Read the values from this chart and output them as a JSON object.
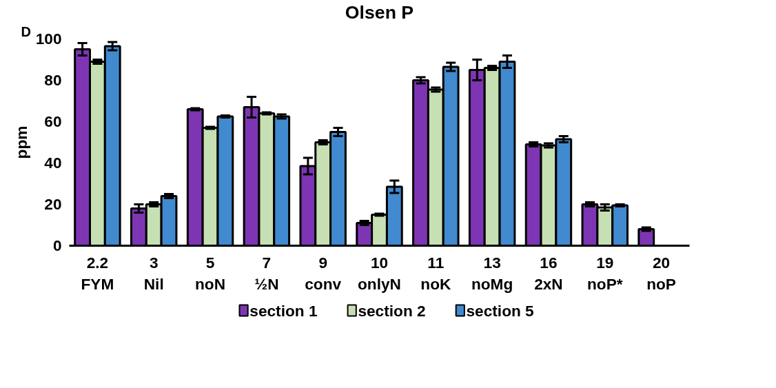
{
  "chart_data": {
    "type": "bar",
    "title": "Olsen P",
    "ylabel": "ppm",
    "annotations": [
      "D"
    ],
    "categories": [
      "2.2\nFYM",
      "3\nNil",
      "5\nnoN",
      "7\n½N",
      "9\nconv",
      "10\nonlyN",
      "11\nnoK",
      "13\nnoMg",
      "16\n2xN",
      "19\nnoP*",
      "20\nnoP"
    ],
    "series": [
      {
        "name": "section 1",
        "color": "#7e35b4",
        "values": [
          95,
          18,
          66,
          67,
          38.5,
          11,
          80,
          85,
          49,
          20,
          8
        ],
        "errors": [
          3,
          2,
          0.5,
          5,
          4,
          1,
          1.5,
          5,
          1,
          1,
          0.8
        ]
      },
      {
        "name": "section 2",
        "color": "#c6e0b4",
        "values": [
          89,
          20,
          57,
          64,
          50,
          15,
          75.5,
          86,
          48.5,
          18.5,
          null
        ],
        "errors": [
          1,
          1,
          0.5,
          0.5,
          1,
          0.5,
          1,
          1,
          1,
          1.5,
          null
        ]
      },
      {
        "name": "section 5",
        "color": "#418ad0",
        "values": [
          96.5,
          24,
          62.5,
          62.5,
          55,
          28.5,
          86.5,
          89,
          51.5,
          19.5,
          null
        ],
        "errors": [
          2,
          1,
          0.5,
          1,
          2,
          3,
          2,
          3,
          1.5,
          0.5,
          null
        ]
      }
    ],
    "ylim": [
      0,
      100
    ],
    "yticks": [
      0,
      20,
      40,
      60,
      80,
      100
    ],
    "grid": false,
    "legend": "bottom"
  }
}
